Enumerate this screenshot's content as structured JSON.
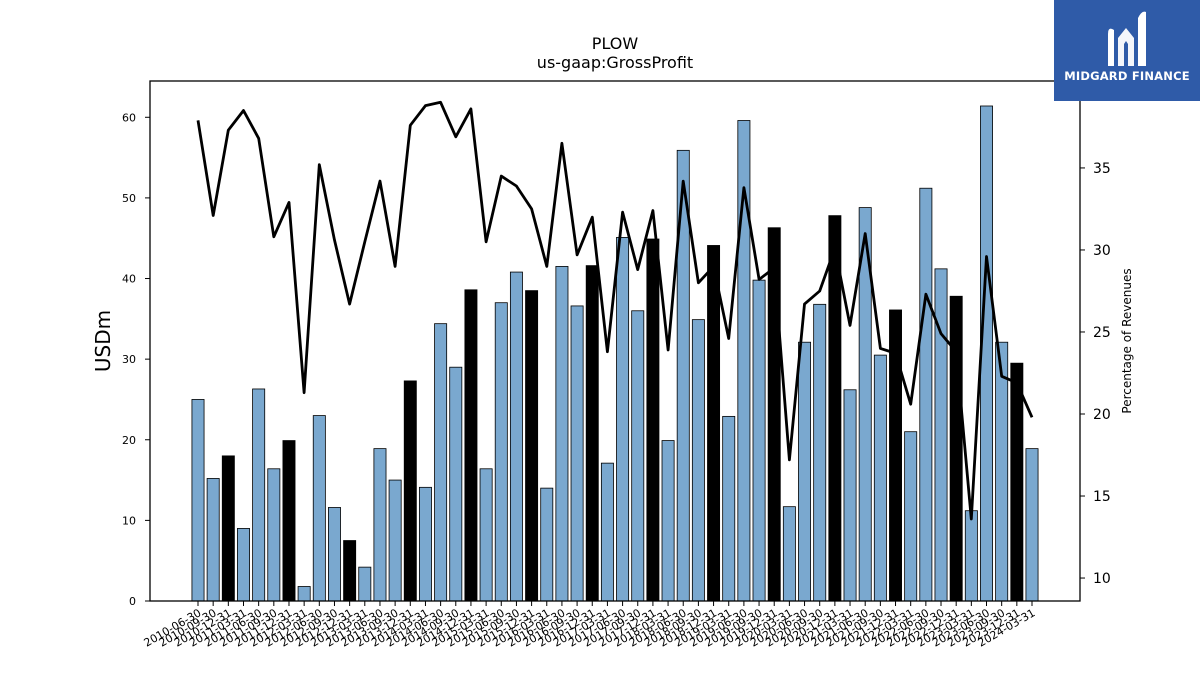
{
  "brand": {
    "name": "MIDGARD FINANCE",
    "logo_icon": "midgard-m-icon",
    "background": "#2f5ba8"
  },
  "chart_data": {
    "type": "bar",
    "title": "PLOW",
    "subtitle": "us-gaap:GrossProfit",
    "ylabel": "USDm",
    "y2label": "Percentage of Revenues",
    "ylim": [
      0,
      64.5
    ],
    "y2lim": [
      8.6,
      40.3
    ],
    "yticks": [
      0,
      10,
      20,
      30,
      40,
      50,
      60
    ],
    "y2ticks": [
      10,
      15,
      20,
      25,
      30,
      35
    ],
    "grid": false,
    "bar_color_quarter": "#7aa8cf",
    "bar_color_annual": "#000000",
    "line_color": "#000000",
    "categories": [
      "2010-06-30",
      "2010-09-30",
      "2010-12-31",
      "2011-03-31",
      "2011-06-30",
      "2011-09-30",
      "2011-12-31",
      "2012-03-31",
      "2012-06-30",
      "2012-09-30",
      "2012-12-31",
      "2013-03-31",
      "2013-06-30",
      "2013-09-30",
      "2013-12-31",
      "2014-03-31",
      "2014-06-30",
      "2014-09-30",
      "2014-12-31",
      "2015-03-31",
      "2015-06-30",
      "2015-09-30",
      "2015-12-31",
      "2016-03-31",
      "2016-06-30",
      "2016-09-30",
      "2016-12-31",
      "2017-03-31",
      "2017-06-30",
      "2017-09-30",
      "2017-12-31",
      "2018-03-31",
      "2018-06-30",
      "2018-09-30",
      "2018-12-31",
      "2019-03-31",
      "2019-06-30",
      "2019-09-30",
      "2019-12-31",
      "2020-03-31",
      "2020-06-30",
      "2020-09-30",
      "2020-12-31",
      "2021-03-31",
      "2021-06-30",
      "2021-09-30",
      "2021-12-31",
      "2022-03-31",
      "2022-06-30",
      "2022-09-30",
      "2022-12-31",
      "2023-03-31",
      "2023-06-30",
      "2023-09-30",
      "2023-12-31",
      "2024-03-31"
    ],
    "series": [
      {
        "values": [
          25.0,
          15.2,
          18.0,
          9.0,
          26.3,
          16.4,
          19.9,
          1.8,
          23.0,
          11.6,
          7.5,
          4.2,
          18.9,
          15.0,
          27.3,
          14.1,
          34.4,
          29.0,
          38.6,
          16.4,
          37.0,
          40.8,
          38.5,
          14.0,
          41.5,
          36.6,
          41.6,
          17.1,
          45.1,
          36.0,
          44.9,
          19.9,
          55.9,
          34.9,
          44.1,
          22.9,
          59.6,
          39.8,
          46.3,
          11.7,
          32.1,
          36.8,
          47.8,
          26.2,
          48.8,
          30.5,
          36.1,
          21.0,
          51.2,
          41.2,
          37.8,
          11.2,
          61.4,
          32.1,
          29.5,
          18.9
        ],
        "annual": [
          false,
          false,
          true,
          false,
          false,
          false,
          true,
          false,
          false,
          false,
          true,
          false,
          false,
          false,
          true,
          false,
          false,
          false,
          true,
          false,
          false,
          false,
          true,
          false,
          false,
          false,
          true,
          false,
          false,
          false,
          true,
          false,
          false,
          false,
          true,
          false,
          false,
          false,
          true,
          false,
          false,
          false,
          true,
          false,
          false,
          false,
          true,
          false,
          false,
          false,
          true,
          false,
          false,
          false,
          true,
          false
        ]
      },
      {
        "axis": "right",
        "values": [
          37.9,
          32.1,
          37.3,
          38.5,
          36.8,
          30.8,
          32.9,
          21.3,
          35.2,
          30.6,
          26.7,
          30.5,
          34.2,
          29.0,
          37.6,
          38.8,
          39.0,
          36.9,
          38.6,
          30.5,
          34.5,
          33.9,
          32.5,
          29.0,
          36.5,
          29.7,
          32.0,
          23.8,
          32.3,
          28.8,
          32.4,
          23.9,
          34.2,
          28.0,
          29.0,
          24.6,
          33.8,
          28.2,
          28.9,
          17.2,
          26.7,
          27.5,
          30.1,
          25.4,
          31.0,
          24.0,
          23.7,
          20.6,
          27.3,
          24.9,
          23.8,
          13.6,
          29.6,
          22.3,
          21.9,
          19.8
        ]
      }
    ]
  }
}
